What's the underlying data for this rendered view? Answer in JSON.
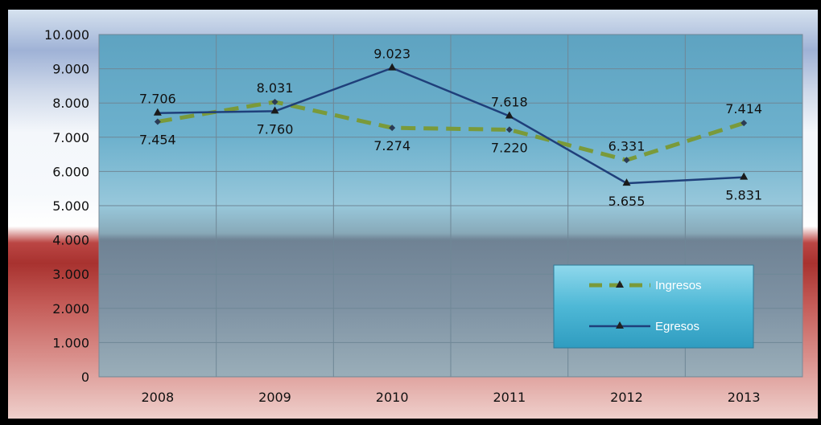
{
  "chart_data": {
    "type": "line",
    "categories": [
      "2008",
      "2009",
      "2010",
      "2011",
      "2012",
      "2013"
    ],
    "ylim": [
      0,
      10000
    ],
    "y_ticks": [
      "0",
      "1.000",
      "2.000",
      "3.000",
      "4.000",
      "5.000",
      "6.000",
      "7.000",
      "8.000",
      "9.000",
      "10.000"
    ],
    "grid": true,
    "legend_position": "lower-right",
    "series": [
      {
        "name": "Ingresos",
        "values": [
          7454,
          8031,
          7274,
          7220,
          6331,
          7414
        ],
        "labels": [
          "7.454",
          "8.031",
          "7.274",
          "7.220",
          "6.331",
          "7.414"
        ],
        "color": "#7a9a3a",
        "style": "dashed"
      },
      {
        "name": "Egresos",
        "values": [
          7706,
          7760,
          9023,
          7618,
          5655,
          5831
        ],
        "labels": [
          "7.706",
          "7.760",
          "9.023",
          "7.618",
          "5.655",
          "5.831"
        ],
        "color": "#1f3f7a",
        "style": "solid"
      }
    ]
  }
}
